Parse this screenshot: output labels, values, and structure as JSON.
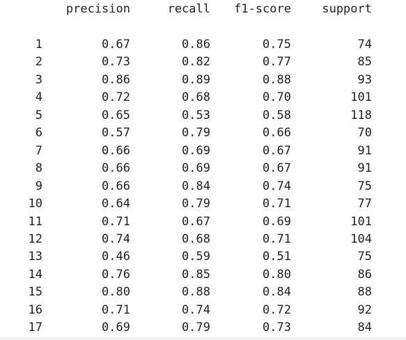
{
  "report": {
    "headers": {
      "label": "",
      "precision": "precision",
      "recall": "recall",
      "f1": "f1-score",
      "support": "support"
    },
    "rows": [
      {
        "label": "1",
        "precision": "0.67",
        "recall": "0.86",
        "f1": "0.75",
        "support": "74"
      },
      {
        "label": "2",
        "precision": "0.73",
        "recall": "0.82",
        "f1": "0.77",
        "support": "85"
      },
      {
        "label": "3",
        "precision": "0.86",
        "recall": "0.89",
        "f1": "0.88",
        "support": "93"
      },
      {
        "label": "4",
        "precision": "0.72",
        "recall": "0.68",
        "f1": "0.70",
        "support": "101"
      },
      {
        "label": "5",
        "precision": "0.65",
        "recall": "0.53",
        "f1": "0.58",
        "support": "118"
      },
      {
        "label": "6",
        "precision": "0.57",
        "recall": "0.79",
        "f1": "0.66",
        "support": "70"
      },
      {
        "label": "7",
        "precision": "0.66",
        "recall": "0.69",
        "f1": "0.67",
        "support": "91"
      },
      {
        "label": "8",
        "precision": "0.66",
        "recall": "0.69",
        "f1": "0.67",
        "support": "91"
      },
      {
        "label": "9",
        "precision": "0.66",
        "recall": "0.84",
        "f1": "0.74",
        "support": "75"
      },
      {
        "label": "10",
        "precision": "0.64",
        "recall": "0.79",
        "f1": "0.71",
        "support": "77"
      },
      {
        "label": "11",
        "precision": "0.71",
        "recall": "0.67",
        "f1": "0.69",
        "support": "101"
      },
      {
        "label": "12",
        "precision": "0.74",
        "recall": "0.68",
        "f1": "0.71",
        "support": "104"
      },
      {
        "label": "13",
        "precision": "0.46",
        "recall": "0.59",
        "f1": "0.51",
        "support": "75"
      },
      {
        "label": "14",
        "precision": "0.76",
        "recall": "0.85",
        "f1": "0.80",
        "support": "86"
      },
      {
        "label": "15",
        "precision": "0.80",
        "recall": "0.88",
        "f1": "0.84",
        "support": "88"
      },
      {
        "label": "16",
        "precision": "0.71",
        "recall": "0.74",
        "f1": "0.72",
        "support": "92"
      },
      {
        "label": "17",
        "precision": "0.69",
        "recall": "0.79",
        "f1": "0.73",
        "support": "84"
      }
    ]
  },
  "colors": {
    "text": "#1f1f1f",
    "background": "#ffffff"
  }
}
